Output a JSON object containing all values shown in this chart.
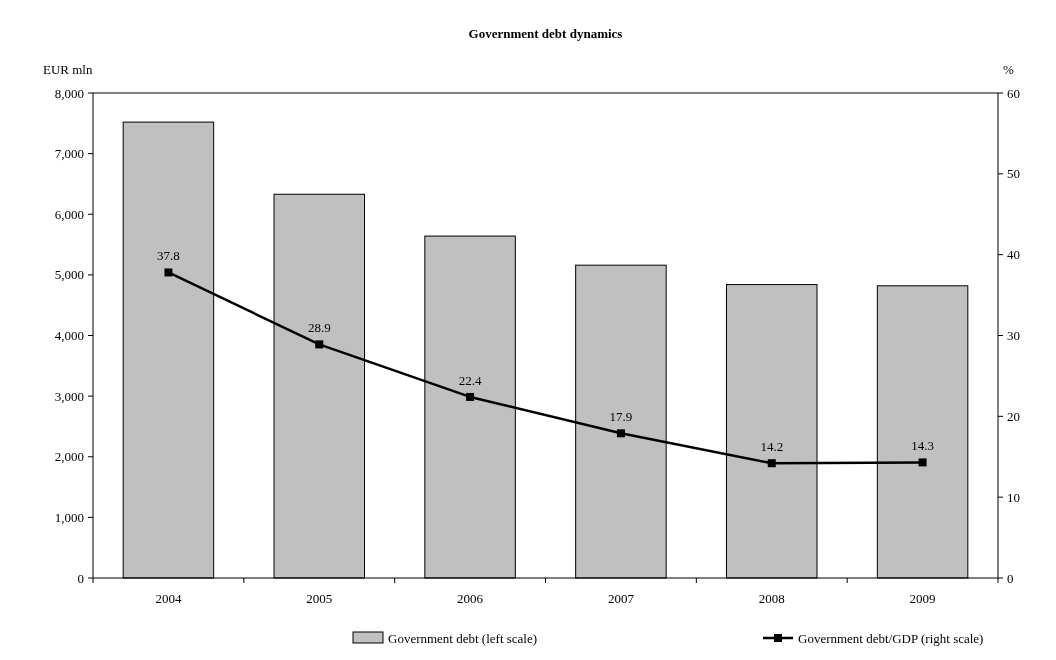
{
  "chart_data": {
    "type": "bar",
    "title": "Government debt dynamics",
    "ylabel": "EUR mln",
    "y2label": "%",
    "categories": [
      "2004",
      "2005",
      "2006",
      "2007",
      "2008",
      "2009"
    ],
    "series": [
      {
        "name": "Government debt (left scale)",
        "color": "#c0c0c0",
        "values": [
          7520,
          6330,
          5640,
          5160,
          4840,
          4820
        ]
      },
      {
        "name": "Government debt/GDP (right scale)",
        "type": "line",
        "axis": "y2",
        "color": "#000000",
        "marker": "square",
        "values": [
          37.8,
          28.9,
          22.4,
          17.9,
          14.2,
          14.3
        ],
        "value_labels": [
          "37.8",
          "28.9",
          "22.4",
          "17.9",
          "14.2",
          "14.3"
        ]
      }
    ],
    "ylim": [
      0,
      8000
    ],
    "yticks": [
      {
        "value": 0,
        "label": "0"
      },
      {
        "value": 1000,
        "label": "1,000"
      },
      {
        "value": 2000,
        "label": "2,000"
      },
      {
        "value": 3000,
        "label": "3,000"
      },
      {
        "value": 4000,
        "label": "4,000"
      },
      {
        "value": 5000,
        "label": "5,000"
      },
      {
        "value": 6000,
        "label": "6,000"
      },
      {
        "value": 7000,
        "label": "7,000"
      },
      {
        "value": 8000,
        "label": "8,000"
      }
    ],
    "y2lim": [
      0,
      60
    ],
    "y2ticks": [
      0,
      10,
      20,
      30,
      40,
      50,
      60
    ],
    "grid": false,
    "legend": "bottom"
  }
}
